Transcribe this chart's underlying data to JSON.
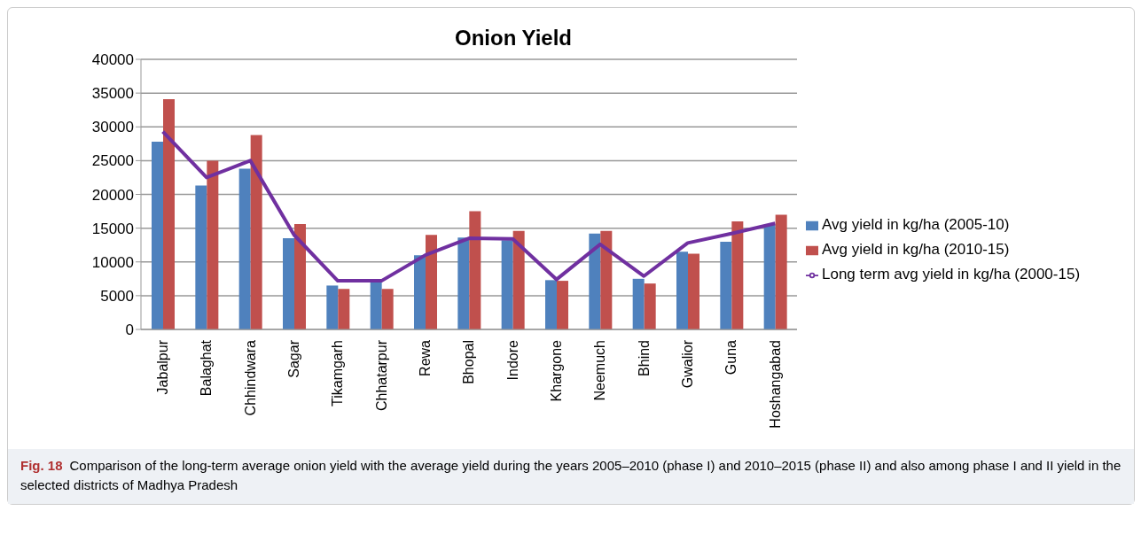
{
  "chart_data": {
    "type": "bar",
    "title": "Onion Yield",
    "categories": [
      "Jabalpur",
      "Balaghat",
      "Chhindwara",
      "Sagar",
      "Tikamgarh",
      "Chhatarpur",
      "Rewa",
      "Bhopal",
      "Indore",
      "Khargone",
      "Neemuch",
      "Bhind",
      "Gwalior",
      "Guna",
      "Hoshangabad"
    ],
    "series": [
      {
        "name": "Avg yield in kg/ha (2005-10)",
        "color": "#4f81bd",
        "values": [
          27800,
          21300,
          23800,
          13500,
          6500,
          7000,
          11000,
          13600,
          13200,
          7300,
          14200,
          7500,
          11500,
          13000,
          15500
        ]
      },
      {
        "name": "Avg yield in kg/ha (2010-15)",
        "color": "#c0504d",
        "values": [
          34100,
          25000,
          28800,
          15600,
          6000,
          6000,
          14000,
          17500,
          14600,
          7200,
          14600,
          6800,
          11200,
          16000,
          17000
        ]
      },
      {
        "name": "Long term avg yield in kg/ha (2000-15)",
        "type": "line",
        "color": "#7030a0",
        "values": [
          29300,
          22500,
          25000,
          14000,
          7200,
          7200,
          11000,
          13500,
          13400,
          7400,
          12600,
          7900,
          12800,
          14200,
          15700
        ]
      }
    ],
    "ylim": [
      0,
      40000
    ],
    "yticks": [
      0,
      5000,
      10000,
      15000,
      20000,
      25000,
      30000,
      35000,
      40000
    ],
    "grid": "y",
    "legend": "right",
    "marker": "none",
    "annotations": [
      "Fig. 18",
      "Comparison of the long-term average onion yield with the average yield during the years 2005–2010 (phase I) and 2010–2015 (phase II) and also among phase I and II yield in the selected districts of Madhya Pradesh"
    ]
  }
}
